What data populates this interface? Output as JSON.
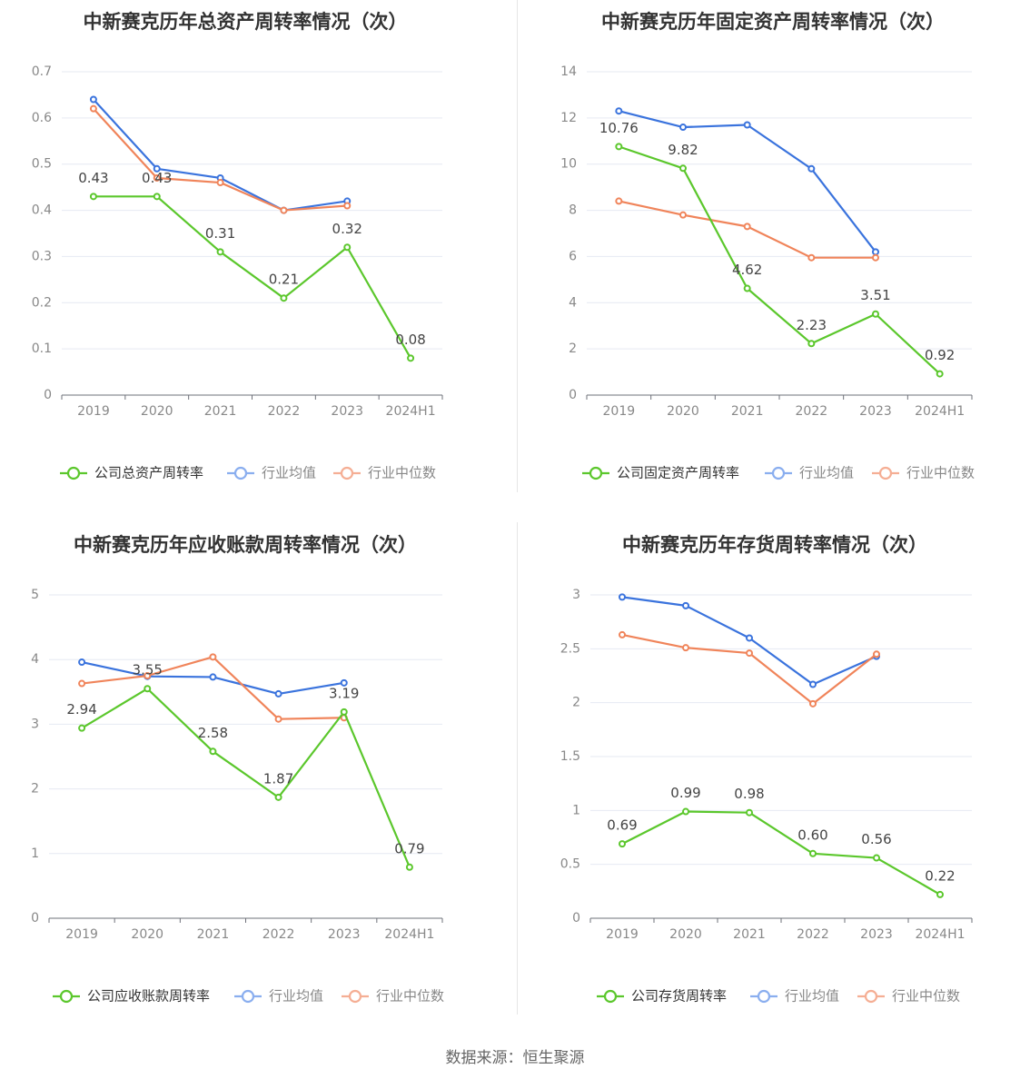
{
  "source_text": "数据来源：恒生聚源",
  "colors": {
    "company": "#5bc72c",
    "avg": "#3a73dd",
    "median": "#f0845a"
  },
  "chart_data": [
    {
      "type": "line",
      "title": "中新赛克历年总资产周转率情况（次）",
      "categories": [
        "2019",
        "2020",
        "2021",
        "2022",
        "2023",
        "2024H1"
      ],
      "yticks": [
        "0",
        "0.1",
        "0.2",
        "0.3",
        "0.4",
        "0.5",
        "0.6",
        "0.7"
      ],
      "ylim": [
        0,
        0.7
      ],
      "series": [
        {
          "name": "公司总资产周转率",
          "values": [
            0.43,
            0.43,
            0.31,
            0.21,
            0.32,
            0.08
          ],
          "labels": [
            "0.43",
            "0.43",
            "0.31",
            "0.21",
            "0.32",
            "0.08"
          ]
        },
        {
          "name": "行业均值",
          "values": [
            0.64,
            0.49,
            0.47,
            0.4,
            0.42,
            null
          ]
        },
        {
          "name": "行业中位数",
          "values": [
            0.62,
            0.47,
            0.46,
            0.4,
            0.41,
            null
          ]
        }
      ],
      "legend": "bottom",
      "grid": true
    },
    {
      "type": "line",
      "title": "中新赛克历年固定资产周转率情况（次）",
      "categories": [
        "2019",
        "2020",
        "2021",
        "2022",
        "2023",
        "2024H1"
      ],
      "yticks": [
        "0",
        "2",
        "4",
        "6",
        "8",
        "10",
        "12",
        "14"
      ],
      "ylim": [
        0,
        14
      ],
      "series": [
        {
          "name": "公司固定资产周转率",
          "values": [
            10.76,
            9.82,
            4.62,
            2.23,
            3.51,
            0.92
          ],
          "labels": [
            "10.76",
            "9.82",
            "4.62",
            "2.23",
            "3.51",
            "0.92"
          ]
        },
        {
          "name": "行业均值",
          "values": [
            12.3,
            11.6,
            11.7,
            9.8,
            6.2,
            null
          ]
        },
        {
          "name": "行业中位数",
          "values": [
            8.4,
            7.8,
            7.3,
            5.95,
            5.95,
            null
          ]
        }
      ],
      "legend": "bottom",
      "grid": true
    },
    {
      "type": "line",
      "title": "中新赛克历年应收账款周转率情况（次）",
      "categories": [
        "2019",
        "2020",
        "2021",
        "2022",
        "2023",
        "2024H1"
      ],
      "yticks": [
        "0",
        "1",
        "2",
        "3",
        "4",
        "5"
      ],
      "ylim": [
        0,
        5
      ],
      "series": [
        {
          "name": "公司应收账款周转率",
          "values": [
            2.94,
            3.55,
            2.58,
            1.87,
            3.19,
            0.79
          ],
          "labels": [
            "2.94",
            "3.55",
            "2.58",
            "1.87",
            "3.19",
            "0.79"
          ]
        },
        {
          "name": "行业均值",
          "values": [
            3.96,
            3.74,
            3.73,
            3.47,
            3.64,
            null
          ]
        },
        {
          "name": "行业中位数",
          "values": [
            3.63,
            3.75,
            4.04,
            3.08,
            3.1,
            null
          ]
        }
      ],
      "legend": "bottom",
      "grid": true
    },
    {
      "type": "line",
      "title": "中新赛克历年存货周转率情况（次）",
      "categories": [
        "2019",
        "2020",
        "2021",
        "2022",
        "2023",
        "2024H1"
      ],
      "yticks": [
        "0",
        "0.5",
        "1",
        "1.5",
        "2",
        "2.5",
        "3"
      ],
      "ylim": [
        0,
        3
      ],
      "series": [
        {
          "name": "公司存货周转率",
          "values": [
            0.69,
            0.99,
            0.98,
            0.6,
            0.56,
            0.22
          ],
          "labels": [
            "0.69",
            "0.99",
            "0.98",
            "0.60",
            "0.56",
            "0.22"
          ]
        },
        {
          "name": "行业均值",
          "values": [
            2.98,
            2.9,
            2.6,
            2.17,
            2.43,
            null
          ]
        },
        {
          "name": "行业中位数",
          "values": [
            2.63,
            2.51,
            2.46,
            1.99,
            2.45,
            null
          ]
        }
      ],
      "legend": "bottom",
      "grid": true
    }
  ]
}
